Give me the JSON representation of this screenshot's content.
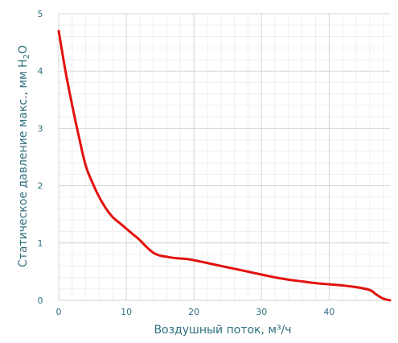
{
  "chart_data": {
    "type": "line",
    "xlabel": "Воздушный поток, м³/ч",
    "ylabel_parts": [
      "Статическое давление макс., мм H",
      "2",
      "O"
    ],
    "xlim": [
      0,
      49
    ],
    "ylim": [
      0,
      5
    ],
    "x_ticks": [
      0,
      10,
      20,
      30,
      40
    ],
    "y_ticks": [
      0,
      1,
      2,
      3,
      4,
      5
    ],
    "grid": true,
    "series": [
      {
        "color": "#e3100f",
        "points": [
          [
            0.0,
            4.7
          ],
          [
            1.0,
            4.0
          ],
          [
            2.0,
            3.4
          ],
          [
            3.0,
            2.85
          ],
          [
            4.0,
            2.35
          ],
          [
            5.0,
            2.05
          ],
          [
            6.0,
            1.8
          ],
          [
            7.0,
            1.6
          ],
          [
            8.0,
            1.45
          ],
          [
            9.0,
            1.35
          ],
          [
            10.0,
            1.25
          ],
          [
            11.0,
            1.15
          ],
          [
            12.0,
            1.05
          ],
          [
            13.0,
            0.93
          ],
          [
            14.0,
            0.83
          ],
          [
            15.0,
            0.78
          ],
          [
            16.0,
            0.76
          ],
          [
            17.0,
            0.74
          ],
          [
            18.0,
            0.73
          ],
          [
            19.0,
            0.72
          ],
          [
            20.0,
            0.7
          ],
          [
            22.0,
            0.65
          ],
          [
            24.0,
            0.6
          ],
          [
            26.0,
            0.55
          ],
          [
            28.0,
            0.5
          ],
          [
            30.0,
            0.45
          ],
          [
            32.0,
            0.4
          ],
          [
            34.0,
            0.36
          ],
          [
            36.0,
            0.33
          ],
          [
            38.0,
            0.3
          ],
          [
            40.0,
            0.28
          ],
          [
            42.0,
            0.26
          ],
          [
            44.0,
            0.23
          ],
          [
            46.0,
            0.18
          ],
          [
            47.0,
            0.1
          ],
          [
            48.0,
            0.03
          ],
          [
            49.0,
            0.0
          ]
        ]
      }
    ]
  }
}
